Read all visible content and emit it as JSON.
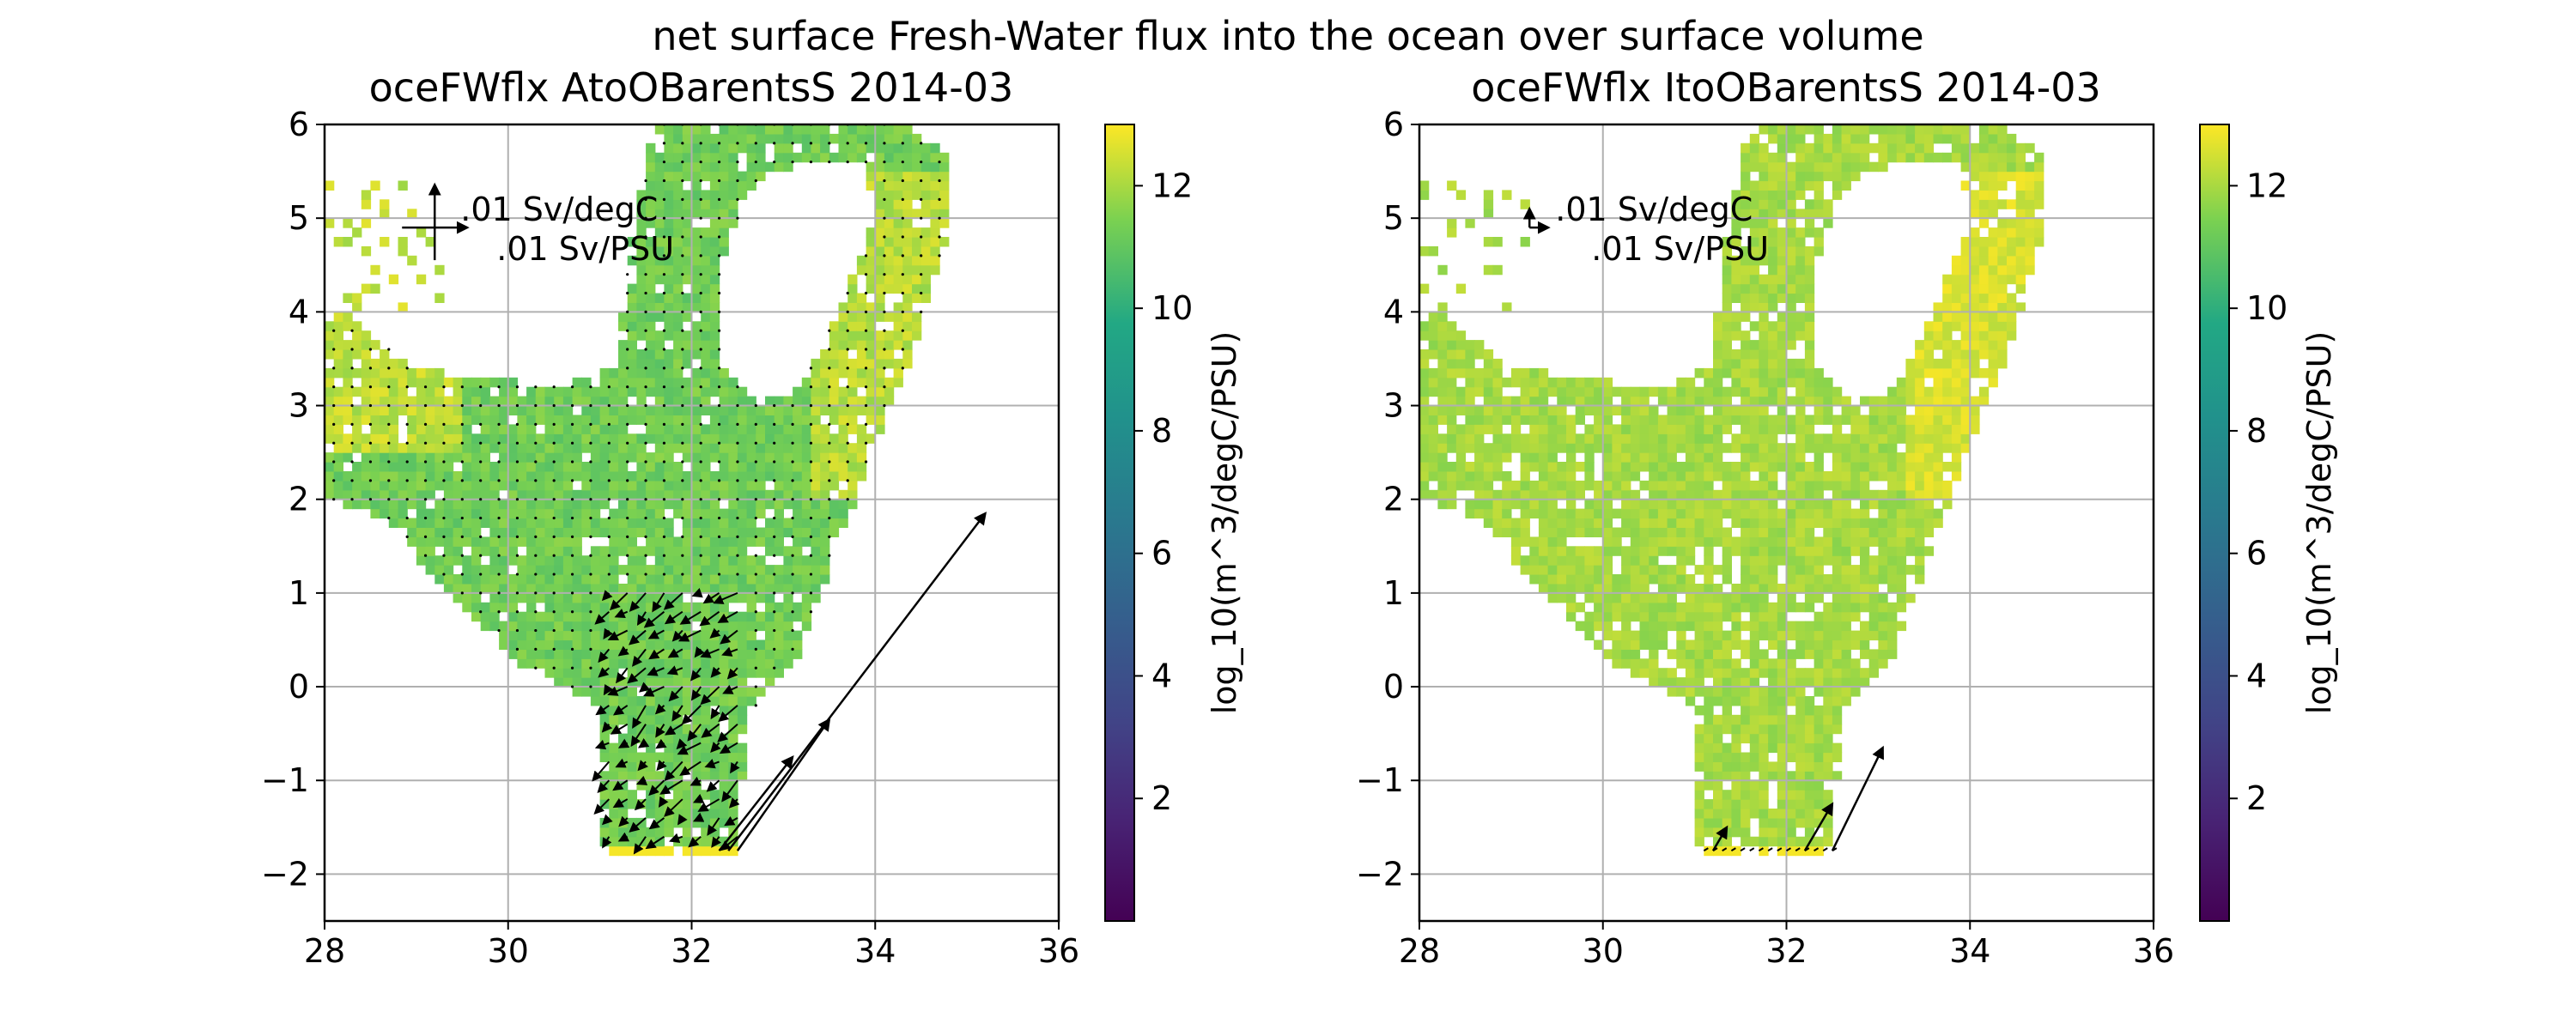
{
  "figure": {
    "suptitle": "net surface Fresh-Water flux into the ocean over surface volume"
  },
  "chart_data": [
    {
      "type": "heatmap",
      "title": "oceFWflx AtoOBarentsS 2014-03",
      "xlim": [
        28,
        36
      ],
      "ylim": [
        -2.5,
        6
      ],
      "xticks": [
        "28",
        "30",
        "32",
        "34",
        "36"
      ],
      "yticks": [
        "−2",
        "−1",
        "0",
        "1",
        "2",
        "3",
        "4",
        "5",
        "6"
      ],
      "grid": true,
      "colormap": "viridis",
      "colorbar": {
        "label": "log_10(m^3/degC/PSU)",
        "range": [
          0,
          13
        ],
        "ticks": [
          "2",
          "4",
          "6",
          "8",
          "10",
          "12"
        ]
      },
      "quiver_key": {
        "u_label": ".01 Sv/PSU",
        "v_label": ".01 Sv/degC"
      },
      "big_arrows": [
        {
          "x": 32.4,
          "y": -1.75,
          "u": 2.8,
          "v": 3.6
        },
        {
          "x": 32.5,
          "y": -1.75,
          "u": 1.0,
          "v": 1.4
        },
        {
          "x": 32.3,
          "y": -1.75,
          "u": 0.8,
          "v": 1.0
        }
      ]
    },
    {
      "type": "heatmap",
      "title": "oceFWflx ItoOBarentsS 2014-03",
      "xlim": [
        28,
        36
      ],
      "ylim": [
        -2.5,
        6
      ],
      "xticks": [
        "28",
        "30",
        "32",
        "34",
        "36"
      ],
      "yticks": [
        "−2",
        "−1",
        "0",
        "1",
        "2",
        "3",
        "4",
        "5",
        "6"
      ],
      "grid": true,
      "colormap": "viridis",
      "colorbar": {
        "label": "log_10(m^3/degC/PSU)",
        "range": [
          0,
          13
        ],
        "ticks": [
          "2",
          "4",
          "6",
          "8",
          "10",
          "12"
        ]
      },
      "quiver_key": {
        "u_label": ".01 Sv/PSU",
        "v_label": ".01 Sv/degC"
      },
      "big_arrows": [
        {
          "x": 32.5,
          "y": -1.75,
          "u": 0.55,
          "v": 1.1
        },
        {
          "x": 32.2,
          "y": -1.75,
          "u": 0.3,
          "v": 0.5
        },
        {
          "x": 31.2,
          "y": -1.75,
          "u": 0.15,
          "v": 0.25
        }
      ]
    }
  ],
  "colors": {
    "grid": "#b0b0b0",
    "arrow": "#000000"
  }
}
